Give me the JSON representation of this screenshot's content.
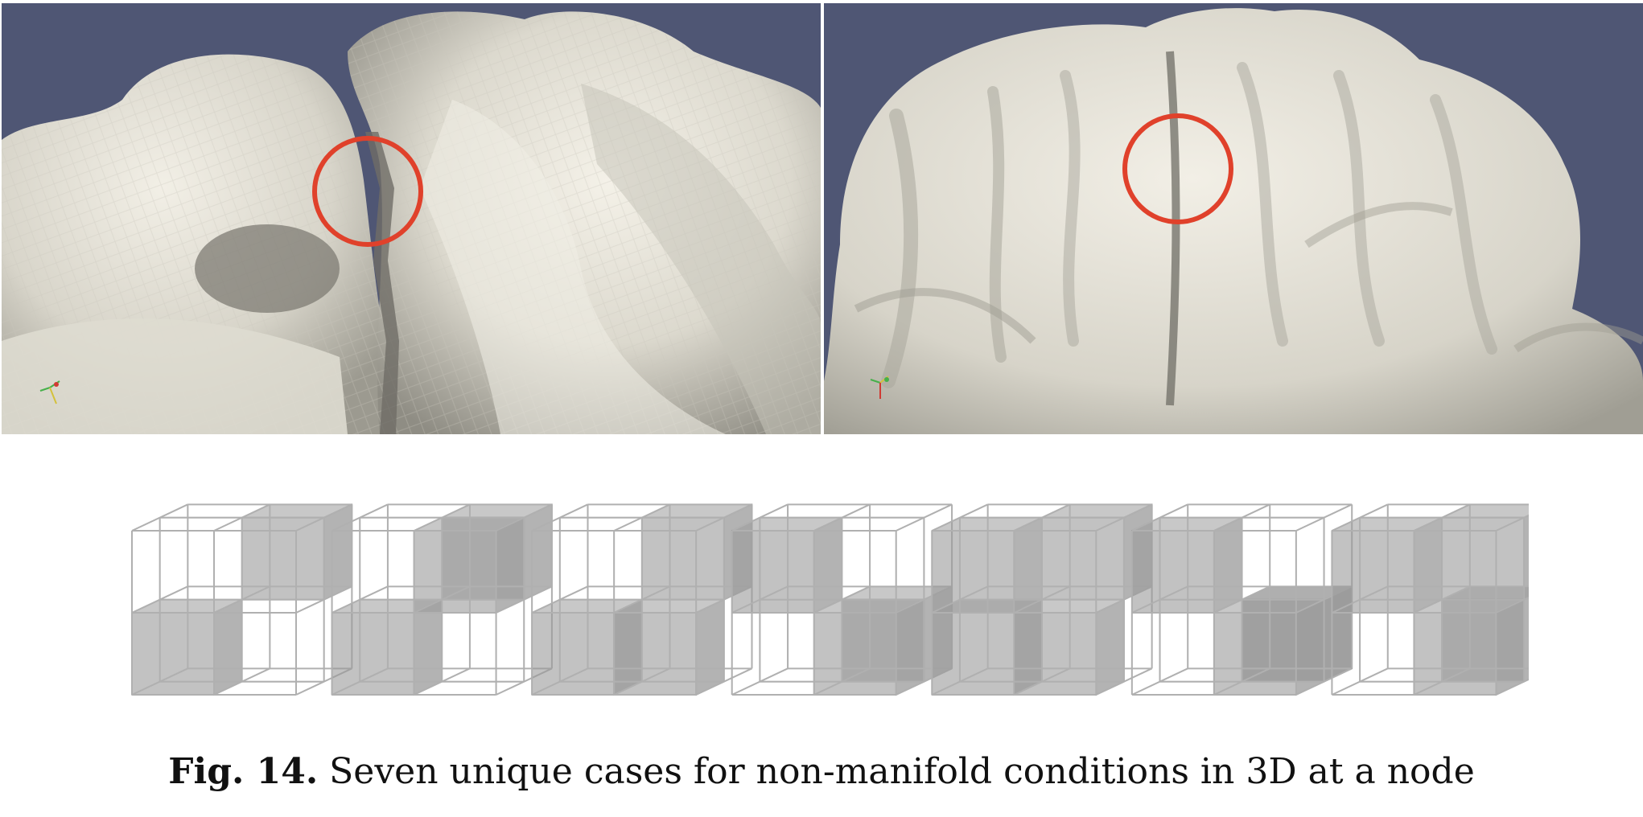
{
  "figure": {
    "images": [
      {
        "id": "left-render",
        "content": "zoomed surface mesh with highlighted non-manifold point",
        "background_color": "#4f5674",
        "surface_color": "#e9e6db",
        "highlight_color": "#e0412b",
        "axis_glyph": "axes-triad-icon"
      },
      {
        "id": "right-render",
        "content": "surface mesh overview with highlighted non-manifold point",
        "background_color": "#4f5674",
        "surface_color": "#e9e6db",
        "highlight_color": "#e0412b",
        "axis_glyph": "axes-triad-icon"
      }
    ],
    "cases": {
      "count": 7,
      "cube_fill": "#9a9a9a",
      "edge_color": "#b0b0b0",
      "items": [
        {
          "case": 1,
          "filled_octants": [
            "top-back-right",
            "bottom-front-left"
          ]
        },
        {
          "case": 2,
          "filled_octants": [
            "top-back-right",
            "bottom-front-left",
            "top-front-right-partial"
          ]
        },
        {
          "case": 3,
          "filled_octants": [
            "top-back-right",
            "bottom-front-left",
            "bottom-front-right"
          ]
        },
        {
          "case": 4,
          "filled_octants": [
            "top-front-left",
            "bottom-front-right",
            "center"
          ]
        },
        {
          "case": 5,
          "filled_octants": [
            "top-front-left",
            "top-back-right",
            "bottom-front-left",
            "bottom-front-right"
          ]
        },
        {
          "case": 6,
          "filled_octants": [
            "top-front-left",
            "bottom-front-right",
            "bottom-back-right",
            "center"
          ]
        },
        {
          "case": 7,
          "filled_octants": [
            "top-front-left",
            "top-back-right",
            "bottom-front-right",
            "center"
          ]
        }
      ]
    },
    "caption": {
      "label": "Fig. 14.",
      "text": " Seven unique cases for non-manifold conditions in 3D at a node"
    }
  }
}
